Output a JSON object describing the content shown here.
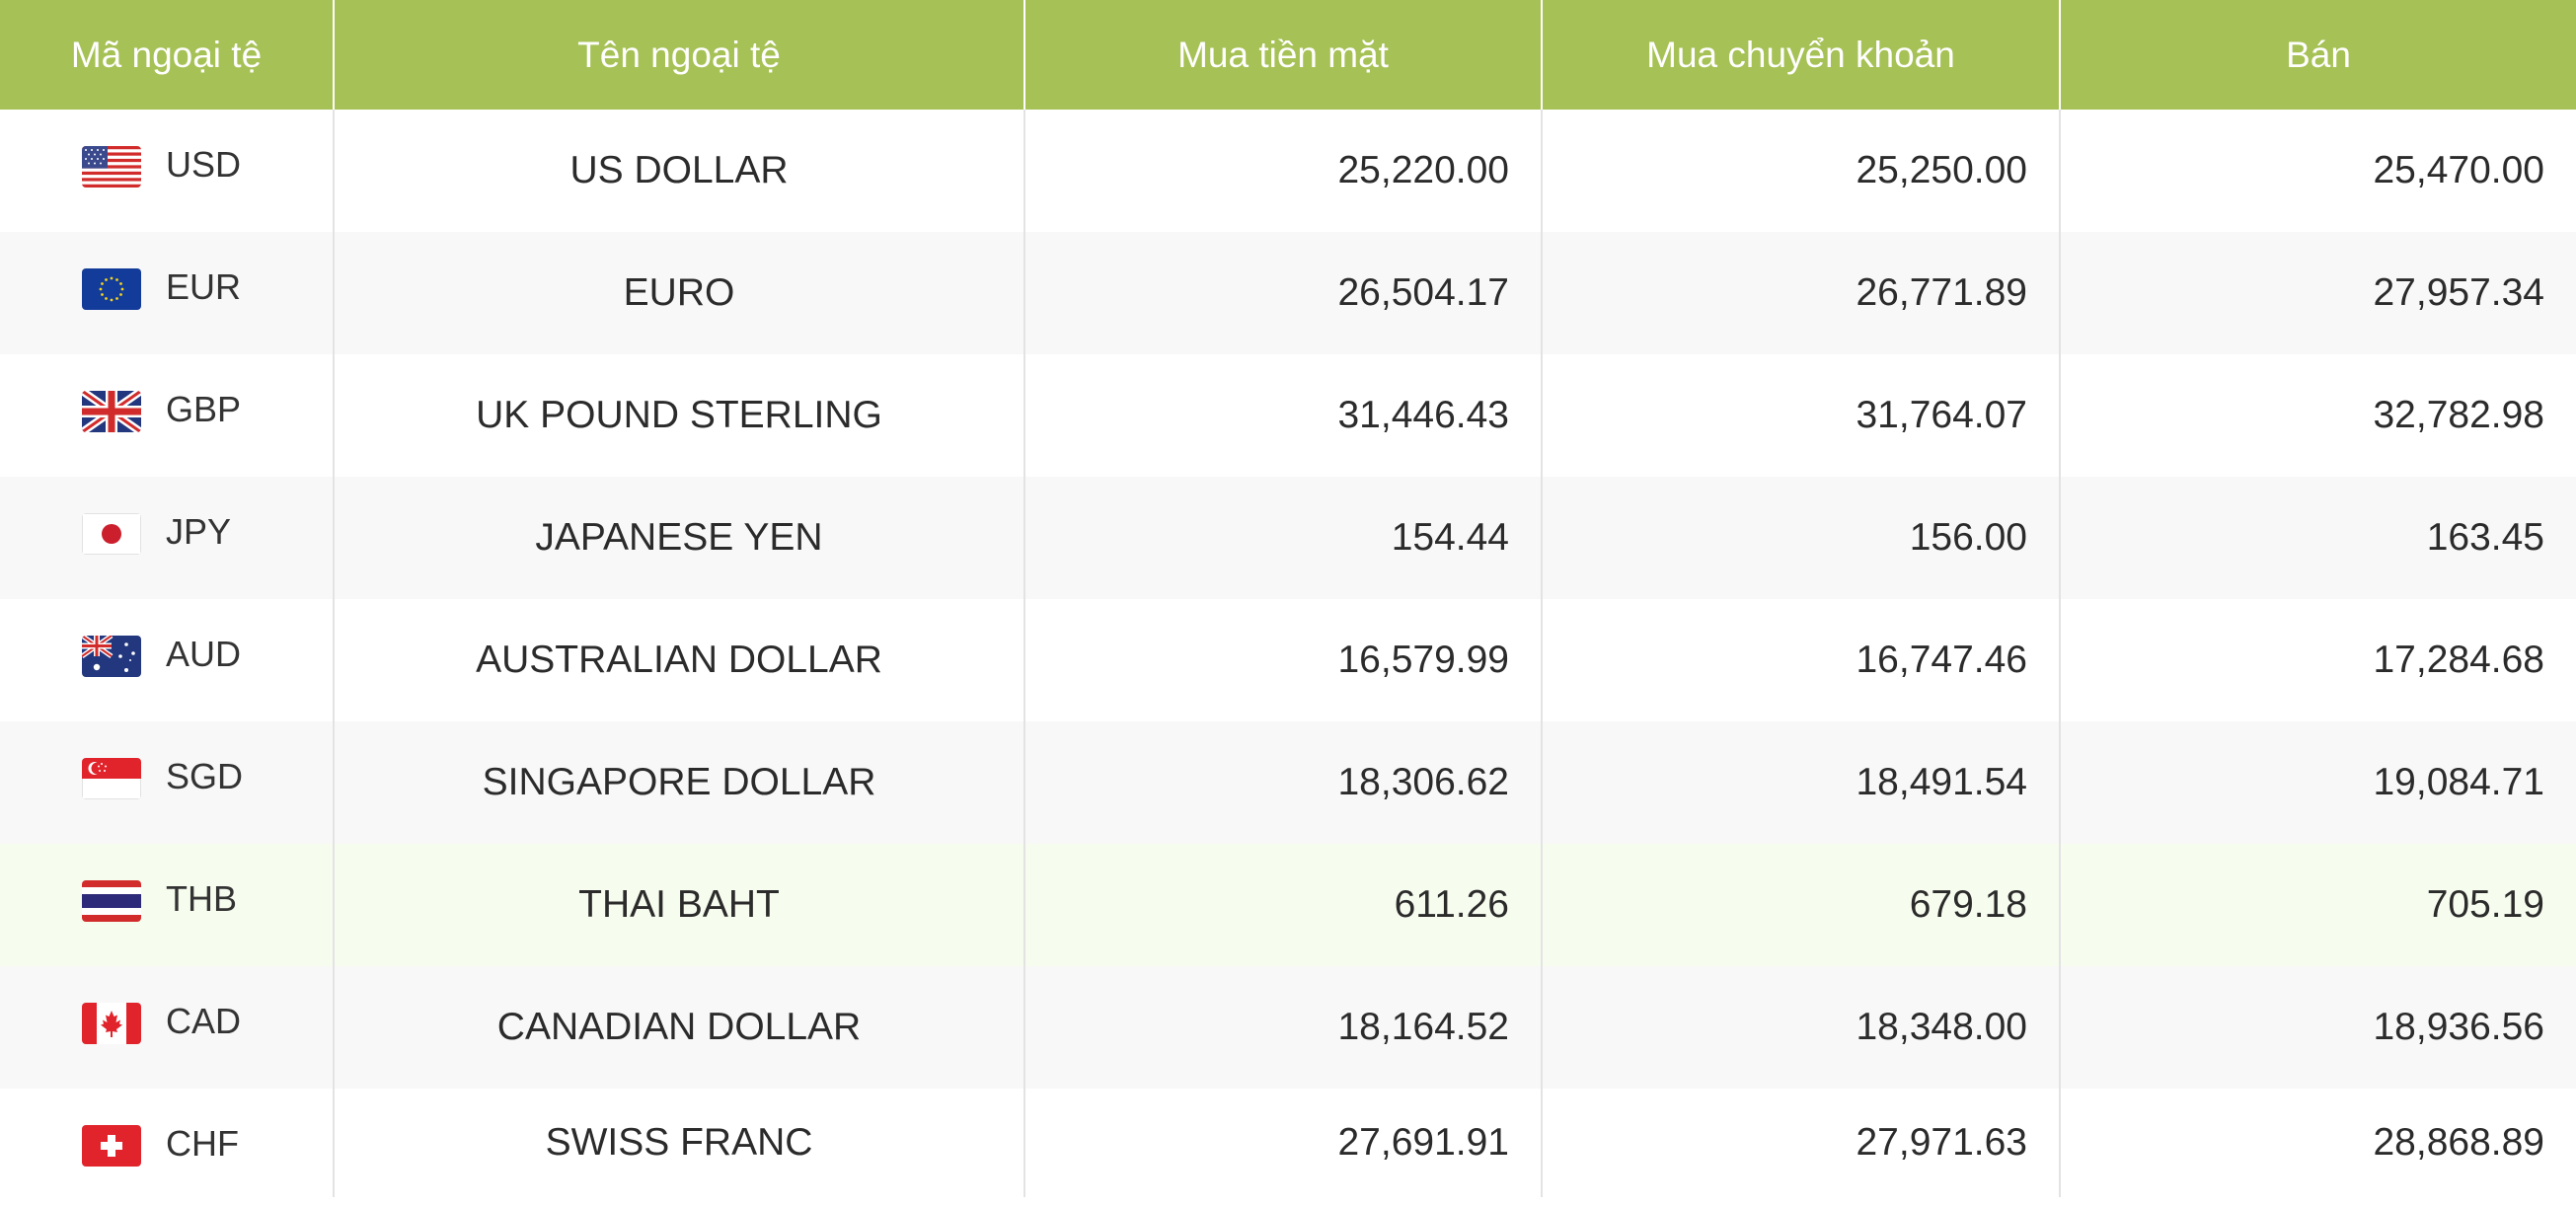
{
  "table": {
    "headers": [
      "Mã ngoại tệ",
      "Tên ngoại tệ",
      "Mua tiền mặt",
      "Mua chuyển khoản",
      "Bán"
    ],
    "rows": [
      {
        "flag_icon": "us-flag-icon",
        "code": "USD",
        "name": "US DOLLAR",
        "buy_cash": "25,220.00",
        "buy_transfer": "25,250.00",
        "sell": "25,470.00"
      },
      {
        "flag_icon": "eu-flag-icon",
        "code": "EUR",
        "name": "EURO",
        "buy_cash": "26,504.17",
        "buy_transfer": "26,771.89",
        "sell": "27,957.34"
      },
      {
        "flag_icon": "uk-flag-icon",
        "code": "GBP",
        "name": "UK POUND STERLING",
        "buy_cash": "31,446.43",
        "buy_transfer": "31,764.07",
        "sell": "32,782.98"
      },
      {
        "flag_icon": "japan-flag-icon",
        "code": "JPY",
        "name": "JAPANESE YEN",
        "buy_cash": "154.44",
        "buy_transfer": "156.00",
        "sell": "163.45"
      },
      {
        "flag_icon": "australia-flag-icon",
        "code": "AUD",
        "name": "AUSTRALIAN DOLLAR",
        "buy_cash": "16,579.99",
        "buy_transfer": "16,747.46",
        "sell": "17,284.68"
      },
      {
        "flag_icon": "singapore-flag-icon",
        "code": "SGD",
        "name": "SINGAPORE DOLLAR",
        "buy_cash": "18,306.62",
        "buy_transfer": "18,491.54",
        "sell": "19,084.71"
      },
      {
        "flag_icon": "thailand-flag-icon",
        "code": "THB",
        "name": "THAI BAHT",
        "buy_cash": "611.26",
        "buy_transfer": "679.18",
        "sell": "705.19"
      },
      {
        "flag_icon": "canada-flag-icon",
        "code": "CAD",
        "name": "CANADIAN DOLLAR",
        "buy_cash": "18,164.52",
        "buy_transfer": "18,348.00",
        "sell": "18,936.56"
      },
      {
        "flag_icon": "switzerland-flag-icon",
        "code": "CHF",
        "name": "SWISS FRANC",
        "buy_cash": "27,691.91",
        "buy_transfer": "27,971.63",
        "sell": "28,868.89"
      }
    ]
  },
  "colors": {
    "header_bg": "#a6c155",
    "header_text": "#ffffff",
    "row_alt_bg": "#f8f8f8",
    "row_highlight_bg": "#f6fcee"
  }
}
